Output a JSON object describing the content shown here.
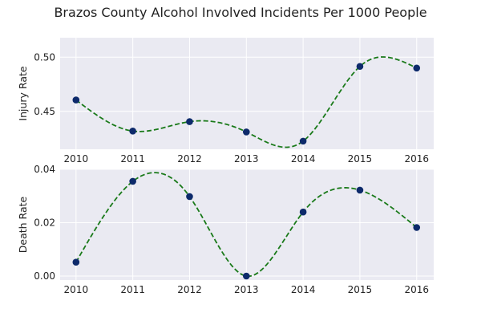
{
  "chart_data": {
    "title": "Brazos County Alcohol Involved Incidents Per 1000 People",
    "colors": {
      "panel_background": "#eaeaf2",
      "grid": "#ffffff",
      "marker": "#0d2a6b",
      "curve": "#1a7a1a"
    },
    "panels": [
      {
        "type": "scatter",
        "curve": "smooth-dashed",
        "ylabel": "Injury Rate",
        "x": [
          2010,
          2011,
          2012,
          2013,
          2014,
          2015,
          2016
        ],
        "y": [
          0.4605,
          0.4318,
          0.4405,
          0.431,
          0.4225,
          0.4915,
          0.49
        ],
        "ylim": [
          0.415,
          0.518
        ],
        "yticks": [
          0.45,
          0.5
        ],
        "ytick_labels": [
          "0.45",
          "0.50"
        ],
        "xticks": [
          "2010",
          "2011",
          "2012",
          "2013",
          "2014",
          "2015",
          "2016"
        ],
        "grid": true
      },
      {
        "type": "scatter",
        "curve": "smooth-dashed",
        "ylabel": "Death Rate",
        "x": [
          2010,
          2011,
          2012,
          2013,
          2014,
          2015,
          2016
        ],
        "y": [
          0.0052,
          0.0355,
          0.0298,
          0.0,
          0.024,
          0.0322,
          0.0182
        ],
        "ylim": [
          -0.0015,
          0.04
        ],
        "yticks": [
          0.0,
          0.02,
          0.04
        ],
        "ytick_labels": [
          "0.00",
          "0.02",
          "0.04"
        ],
        "xticks": [
          "2010",
          "2011",
          "2012",
          "2013",
          "2014",
          "2015",
          "2016"
        ],
        "grid": true
      }
    ]
  }
}
